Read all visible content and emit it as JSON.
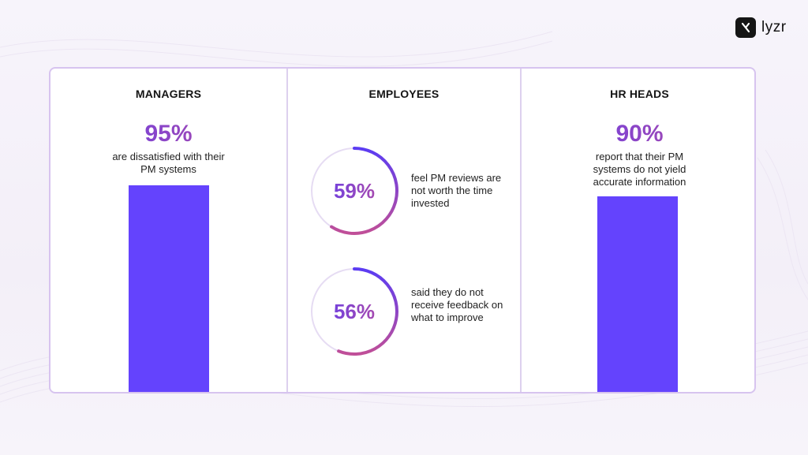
{
  "brand": {
    "name": "lyzr"
  },
  "colors": {
    "bar": "#6443fd",
    "accent_start": "#5b3cf3",
    "accent_end": "#c04f98",
    "ring_track": "#e6dcf3"
  },
  "chart_data": [
    {
      "type": "bar",
      "title": "MANAGERS",
      "value_label": "95%",
      "description": "are dissatisfied with their PM systems",
      "values": [
        95
      ],
      "ylim": [
        0,
        100
      ]
    },
    {
      "type": "pie",
      "title": "EMPLOYEES",
      "items": [
        {
          "value": 59,
          "value_label": "59%",
          "description": "feel PM reviews are not worth the time invested"
        },
        {
          "value": 56,
          "value_label": "56%",
          "description": "said they do not receive feedback on what to improve"
        }
      ]
    },
    {
      "type": "bar",
      "title": "HR HEADS",
      "value_label": "90%",
      "description": "report that their PM systems do not yield accurate information",
      "values": [
        90
      ],
      "ylim": [
        0,
        100
      ]
    }
  ]
}
